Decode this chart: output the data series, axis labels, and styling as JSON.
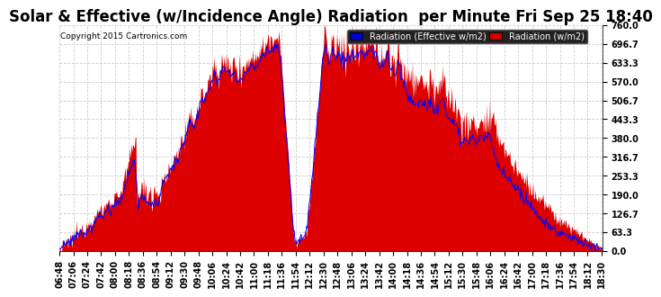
{
  "title": "Solar & Effective (w/Incidence Angle) Radiation  per Minute Fri Sep 25 18:40",
  "copyright": "Copyright 2015 Cartronics.com",
  "legend1_label": "Radiation (Effective w/m2)",
  "legend1_bg": "#0000cc",
  "legend2_label": "Radiation (w/m2)",
  "legend2_bg": "#cc0000",
  "fill_color": "#dd0000",
  "line_color": "#0000ff",
  "ylim": [
    0.0,
    760.0
  ],
  "yticks": [
    0.0,
    63.3,
    126.7,
    190.0,
    253.3,
    316.7,
    380.0,
    443.3,
    506.7,
    570.0,
    633.3,
    696.7,
    760.0
  ],
  "background_color": "#ffffff",
  "grid_color": "#cccccc",
  "title_fontsize": 12,
  "tick_fontsize": 7,
  "copyright_fontsize": 6.5
}
